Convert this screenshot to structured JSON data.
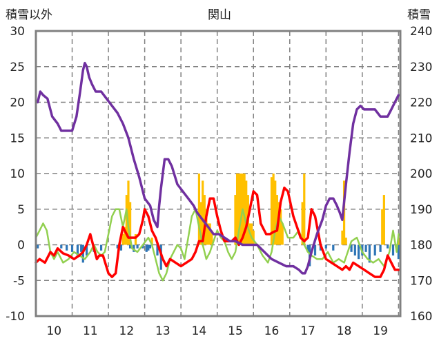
{
  "chart_data": {
    "type": "line",
    "title": "関山",
    "left_axis_label": "積雪以外",
    "right_axis_label": "積雪",
    "x": {
      "range": [
        9.5,
        19.55
      ],
      "ticks": [
        10,
        11,
        12,
        13,
        14,
        15,
        16,
        17,
        18,
        19
      ],
      "tick_labels": [
        "10",
        "11",
        "12",
        "13",
        "14",
        "15",
        "16",
        "17",
        "18",
        "19"
      ]
    },
    "y_left": {
      "range": [
        -10,
        30
      ],
      "ticks": [
        -10,
        -5,
        0,
        5,
        10,
        15,
        20,
        25,
        30
      ],
      "tick_labels": [
        "-10",
        "-5",
        "0",
        "5",
        "10",
        "15",
        "20",
        "25",
        "30"
      ]
    },
    "y_right": {
      "range": [
        160,
        240
      ],
      "ticks": [
        160,
        170,
        180,
        190,
        200,
        210,
        220,
        230,
        240
      ],
      "tick_labels": [
        "160",
        "170",
        "180",
        "190",
        "200",
        "210",
        "220",
        "230",
        "240"
      ]
    },
    "grid": "dashed-vertical-and-horizontal",
    "colors": {
      "snow_depth": "#7030a0",
      "temperature": "#ff0000",
      "wind": "#92d050",
      "precipitation": "#ffc000",
      "negative_bars": "#2e75b6",
      "frame": "#808080",
      "grid": "#808080"
    },
    "series": [
      {
        "key": "snow_depth",
        "axis": "right",
        "kind": "line",
        "color": "#7030a0",
        "x": [
          9.55,
          9.62,
          9.7,
          9.82,
          9.95,
          10.1,
          10.2,
          10.35,
          10.5,
          10.62,
          10.72,
          10.8,
          10.85,
          10.9,
          10.97,
          11.05,
          11.15,
          11.3,
          11.45,
          11.6,
          11.75,
          11.9,
          12.05,
          12.2,
          12.35,
          12.5,
          12.65,
          12.75,
          12.85,
          12.9,
          12.95,
          13.05,
          13.15,
          13.25,
          13.4,
          13.55,
          13.7,
          13.85,
          13.95,
          14.1,
          14.25,
          14.4,
          14.55,
          14.7,
          14.85,
          15.0,
          15.2,
          15.4,
          15.6,
          15.8,
          16.0,
          16.2,
          16.4,
          16.6,
          16.75,
          16.85,
          16.92,
          17.0,
          17.1,
          17.25,
          17.4,
          17.5,
          17.6,
          17.7,
          17.8,
          17.88,
          17.95,
          18.05,
          18.15,
          18.25,
          18.35,
          18.45,
          18.55,
          18.7,
          18.85,
          19.0,
          19.1,
          19.2,
          19.3,
          19.4,
          19.5
        ],
        "y": [
          220,
          223,
          222,
          221,
          216,
          214,
          212,
          212,
          212,
          216,
          223,
          229,
          231,
          230,
          227,
          225,
          223,
          223,
          221,
          219,
          217,
          214,
          210,
          204,
          199,
          193,
          191,
          187,
          185,
          191,
          196,
          204,
          204,
          202,
          197,
          195,
          193,
          191,
          189,
          187,
          185,
          183,
          183,
          182,
          181,
          181,
          180,
          180,
          180,
          178,
          176,
          175,
          174,
          174,
          173,
          172,
          172,
          174,
          178,
          183,
          187,
          191,
          193,
          193,
          191,
          189,
          187,
          197,
          206,
          214,
          218,
          219,
          218,
          218,
          218,
          216,
          216,
          216,
          218,
          220,
          222
        ]
      },
      {
        "key": "temperature",
        "axis": "left",
        "kind": "line",
        "color": "#ff0000",
        "x": [
          9.5,
          9.6,
          9.75,
          9.9,
          10.0,
          10.1,
          10.25,
          10.4,
          10.55,
          10.7,
          10.8,
          10.9,
          11.0,
          11.1,
          11.18,
          11.25,
          11.35,
          11.5,
          11.6,
          11.7,
          11.8,
          11.9,
          11.95,
          12.05,
          12.15,
          12.25,
          12.35,
          12.45,
          12.5,
          12.6,
          12.7,
          12.75,
          12.8,
          12.9,
          13.0,
          13.1,
          13.2,
          13.35,
          13.5,
          13.65,
          13.8,
          13.9,
          14.0,
          14.1,
          14.2,
          14.3,
          14.4,
          14.5,
          14.6,
          14.7,
          14.8,
          14.9,
          15.0,
          15.1,
          15.2,
          15.3,
          15.4,
          15.5,
          15.6,
          15.7,
          15.85,
          15.95,
          16.05,
          16.15,
          16.25,
          16.35,
          16.45,
          16.6,
          16.7,
          16.8,
          16.9,
          17.0,
          17.1,
          17.2,
          17.35,
          17.5,
          17.65,
          17.8,
          17.95,
          18.05,
          18.15,
          18.25,
          18.4,
          18.55,
          18.7,
          18.85,
          19.0,
          19.1,
          19.2,
          19.3,
          19.4,
          19.5
        ],
        "y": [
          -2.5,
          -2,
          -2.5,
          -1,
          -1.5,
          -0.5,
          -1.2,
          -1.5,
          -2,
          -1.5,
          -1,
          0,
          1.5,
          -0.5,
          -2,
          -1.5,
          -1.5,
          -4,
          -4.5,
          -4,
          0,
          2.5,
          2,
          1,
          1,
          1,
          1.5,
          3.5,
          5,
          4,
          2,
          1.5,
          1,
          -0.5,
          -2,
          -3,
          -2,
          -2.5,
          -3,
          -2.5,
          -2,
          -1,
          0.5,
          0.5,
          4,
          6.5,
          6.5,
          4,
          2,
          0.5,
          0.5,
          0.5,
          1,
          0,
          1,
          2.5,
          5,
          7.5,
          7,
          3,
          1.5,
          1.5,
          1.8,
          2,
          6,
          8,
          7.5,
          4,
          2.5,
          1,
          0.5,
          1,
          5,
          4,
          0,
          -2,
          -2.5,
          -3,
          -3.5,
          -3,
          -3.5,
          -2.5,
          -3,
          -3.5,
          -4,
          -4.5,
          -4.5,
          -3.5,
          -1.5,
          -2.5,
          -3.5,
          -3.5
        ]
      },
      {
        "key": "wind",
        "axis": "left",
        "kind": "line",
        "color": "#92d050",
        "x": [
          9.5,
          9.6,
          9.7,
          9.8,
          9.9,
          10.0,
          10.1,
          10.25,
          10.4,
          10.55,
          10.7,
          10.85,
          11.0,
          11.1,
          11.2,
          11.3,
          11.4,
          11.5,
          11.6,
          11.7,
          11.8,
          11.9,
          12.0,
          12.05,
          12.15,
          12.3,
          12.45,
          12.6,
          12.7,
          12.8,
          12.9,
          13.0,
          13.1,
          13.2,
          13.3,
          13.4,
          13.5,
          13.6,
          13.7,
          13.8,
          13.9,
          14.0,
          14.1,
          14.2,
          14.3,
          14.4,
          14.5,
          14.6,
          14.7,
          14.8,
          14.9,
          15.0,
          15.1,
          15.2,
          15.3,
          15.45,
          15.6,
          15.75,
          15.9,
          16.0,
          16.1,
          16.2,
          16.3,
          16.45,
          16.6,
          16.75,
          16.9,
          17.0,
          17.1,
          17.25,
          17.4,
          17.55,
          17.7,
          17.85,
          18.0,
          18.1,
          18.2,
          18.35,
          18.5,
          18.65,
          18.8,
          18.95,
          19.1,
          19.25,
          19.35,
          19.45,
          19.5
        ],
        "y": [
          1,
          2,
          3,
          2,
          -1,
          -2,
          -1,
          -2.5,
          -2,
          -1,
          -1.5,
          -2,
          -1,
          0,
          -1,
          -1.5,
          -1,
          1.5,
          4,
          5,
          5,
          2.5,
          5,
          2.5,
          -0.5,
          -1,
          0,
          1,
          0,
          -2,
          -4,
          -5,
          -4,
          -2,
          -1,
          0,
          -0.5,
          -2,
          1,
          4,
          5,
          2.5,
          0,
          -2,
          -1,
          0.5,
          2,
          1,
          0.5,
          -1,
          -2,
          -1,
          2,
          5,
          3,
          1,
          0,
          -1.5,
          -2.5,
          -1,
          2,
          4,
          3,
          1,
          1,
          2,
          0,
          -1,
          -1.5,
          -2,
          -2,
          -1,
          -2.5,
          -2,
          -2.5,
          -1,
          0.5,
          1,
          -1,
          -2,
          -2.5,
          -2,
          -3,
          -1,
          2,
          -1,
          1.5
        ]
      },
      {
        "key": "precipitation",
        "axis": "left",
        "kind": "bar",
        "color": "#ffc000",
        "x": [
          11.9,
          11.95,
          12.0,
          12.05,
          12.1,
          12.25,
          12.7,
          14.0,
          14.05,
          14.1,
          14.15,
          14.2,
          14.25,
          14.3,
          14.35,
          15.0,
          15.05,
          15.1,
          15.15,
          15.2,
          15.25,
          15.3,
          15.35,
          15.4,
          15.45,
          15.5,
          16.0,
          16.05,
          16.1,
          16.15,
          16.2,
          16.25,
          16.3,
          16.85,
          16.9,
          17.95,
          18.0,
          18.05,
          19.05,
          19.1,
          19.5
        ],
        "y": [
          1.5,
          2.5,
          7,
          9,
          6,
          1.5,
          1,
          10,
          6,
          9,
          7,
          5,
          3,
          3,
          2,
          7,
          10,
          10,
          10,
          10,
          10,
          9,
          7,
          3,
          3,
          2,
          9.5,
          10,
          9,
          7,
          6,
          5,
          3,
          6,
          10,
          2,
          9,
          1,
          5,
          7,
          1
        ]
      },
      {
        "key": "negative",
        "axis": "left",
        "kind": "bar",
        "color": "#2e75b6",
        "x": [
          9.55,
          10.2,
          10.35,
          10.5,
          10.65,
          10.75,
          10.8,
          10.9,
          11.1,
          11.3,
          11.75,
          11.85,
          12.1,
          12.2,
          12.3,
          12.45,
          12.55,
          12.6,
          12.65,
          12.85,
          12.95,
          17.0,
          17.05,
          17.2,
          17.35,
          17.5,
          17.7,
          18.2,
          18.3,
          18.4,
          18.5,
          18.6,
          18.7,
          18.85,
          19.0,
          19.2,
          19.35,
          19.5
        ],
        "y": [
          -0.5,
          -0.5,
          -0.8,
          -1,
          -1.5,
          -1,
          -2.5,
          -1.5,
          -1,
          -0.8,
          -0.5,
          -0.8,
          -0.5,
          -1,
          -0.5,
          -0.5,
          -1,
          -0.8,
          -0.5,
          -1.5,
          -3.5,
          -1,
          -3,
          -1.5,
          -0.8,
          -0.5,
          -0.8,
          -1,
          -1.5,
          -2,
          -1.5,
          -1,
          -2.5,
          -1.5,
          -1,
          -0.5,
          -1.5,
          -2
        ]
      }
    ]
  }
}
